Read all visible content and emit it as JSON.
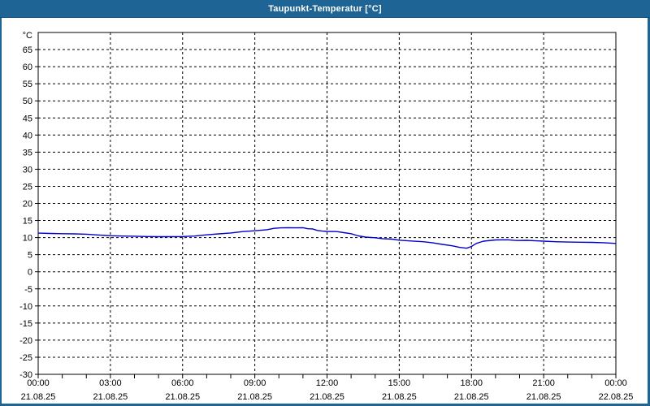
{
  "window": {
    "title": "Taupunkt-Temperatur [°C]",
    "colors": {
      "titlebar_bg": "#1e6494",
      "titlebar_text": "#ffffff",
      "border": "#1e6494",
      "background": "#ffffff"
    }
  },
  "chart_data": {
    "type": "line",
    "title": "Taupunkt-Temperatur [°C]",
    "ylabel": "°C",
    "xlabel": "",
    "grid": "dashed",
    "legend": "none",
    "ylim": [
      -30,
      70
    ],
    "yticks": [
      65,
      60,
      55,
      50,
      45,
      40,
      35,
      30,
      25,
      20,
      15,
      10,
      5,
      0,
      -5,
      -10,
      -15,
      -20,
      -25,
      -30
    ],
    "x_axis": {
      "range_hours": [
        0,
        24
      ],
      "minor_tick_every_hours": 1,
      "major_labels": [
        {
          "hour": 0,
          "time": "00:00",
          "date": "21.08.25"
        },
        {
          "hour": 3,
          "time": "03:00",
          "date": "21.08.25"
        },
        {
          "hour": 6,
          "time": "06:00",
          "date": "21.08.25"
        },
        {
          "hour": 9,
          "time": "09:00",
          "date": "21.08.25"
        },
        {
          "hour": 12,
          "time": "12:00",
          "date": "21.08.25"
        },
        {
          "hour": 15,
          "time": "15:00",
          "date": "21.08.25"
        },
        {
          "hour": 18,
          "time": "18:00",
          "date": "21.08.25"
        },
        {
          "hour": 21,
          "time": "21:00",
          "date": "21.08.25"
        },
        {
          "hour": 24,
          "time": "00:00",
          "date": "22.08.25"
        }
      ]
    },
    "series": [
      {
        "name": "Taupunkt-Temperatur",
        "color": "#0000cc",
        "points": [
          [
            0,
            11.3
          ],
          [
            0.5,
            11.2
          ],
          [
            1,
            11.15
          ],
          [
            1.5,
            11.1
          ],
          [
            2,
            11.0
          ],
          [
            2.5,
            10.75
          ],
          [
            3,
            10.55
          ],
          [
            3.5,
            10.45
          ],
          [
            4,
            10.4
          ],
          [
            4.5,
            10.3
          ],
          [
            5,
            10.25
          ],
          [
            5.5,
            10.25
          ],
          [
            6,
            10.3
          ],
          [
            6.5,
            10.45
          ],
          [
            7,
            10.8
          ],
          [
            7.5,
            11.1
          ],
          [
            8,
            11.35
          ],
          [
            8.5,
            11.75
          ],
          [
            9,
            12.0
          ],
          [
            9.5,
            12.3
          ],
          [
            9.8,
            12.7
          ],
          [
            10.1,
            12.85
          ],
          [
            10.4,
            12.9
          ],
          [
            10.7,
            12.85
          ],
          [
            11,
            12.9
          ],
          [
            11.2,
            12.6
          ],
          [
            11.4,
            12.55
          ],
          [
            11.6,
            12.1
          ],
          [
            11.8,
            11.9
          ],
          [
            12,
            11.8
          ],
          [
            12.4,
            11.75
          ],
          [
            12.7,
            11.45
          ],
          [
            13,
            11.15
          ],
          [
            13.3,
            10.5
          ],
          [
            13.6,
            10.15
          ],
          [
            14,
            9.95
          ],
          [
            14.3,
            9.7
          ],
          [
            14.7,
            9.55
          ],
          [
            15,
            9.25
          ],
          [
            15.5,
            9.0
          ],
          [
            16,
            8.8
          ],
          [
            16.4,
            8.45
          ],
          [
            16.8,
            8.0
          ],
          [
            17.2,
            7.6
          ],
          [
            17.5,
            7.15
          ],
          [
            17.8,
            6.9
          ],
          [
            18,
            7.4
          ],
          [
            18.2,
            8.3
          ],
          [
            18.5,
            8.95
          ],
          [
            19,
            9.3
          ],
          [
            19.5,
            9.35
          ],
          [
            19.9,
            9.15
          ],
          [
            20.3,
            9.2
          ],
          [
            20.7,
            9.05
          ],
          [
            21,
            8.95
          ],
          [
            21.5,
            8.8
          ],
          [
            22,
            8.7
          ],
          [
            22.5,
            8.65
          ],
          [
            23,
            8.6
          ],
          [
            23.5,
            8.5
          ],
          [
            24,
            8.3
          ]
        ]
      }
    ]
  }
}
